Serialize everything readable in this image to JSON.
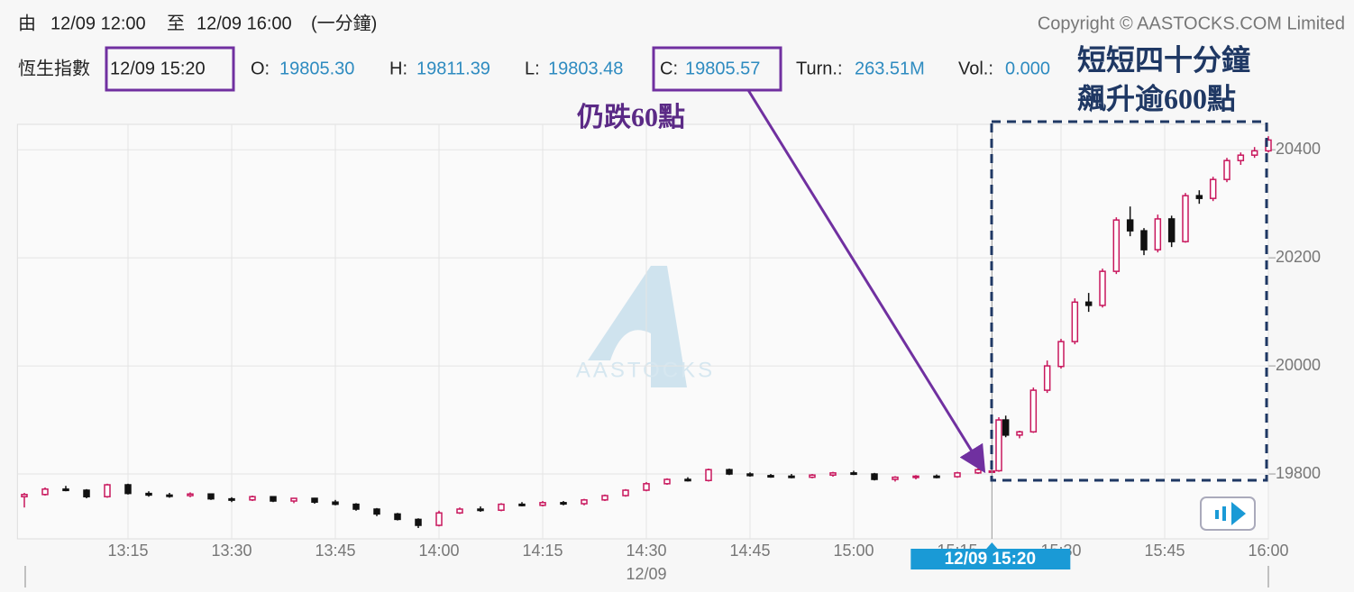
{
  "header": {
    "from_label": "由",
    "from": "12/09 12:00",
    "to_label": "至",
    "to": "12/09 16:00",
    "interval": "(一分鐘)",
    "copyright": "Copyright © AASTOCKS.COM Limited",
    "index_name": "恆生指數",
    "time": "12/09 15:20",
    "open_label": "O:",
    "open": "19805.30",
    "high_label": "H:",
    "high": "19811.39",
    "low_label": "L:",
    "low": "19803.48",
    "close_label": "C:",
    "close": "19805.57",
    "turnover_label": "Turn.:",
    "turnover": "263.51M",
    "volume_label": "Vol.:",
    "volume": "0.000"
  },
  "chart_data": {
    "type": "candlestick",
    "x": [
      "13:00",
      "13:03",
      "13:06",
      "13:09",
      "13:12",
      "13:15",
      "13:18",
      "13:21",
      "13:24",
      "13:27",
      "13:30",
      "13:33",
      "13:36",
      "13:39",
      "13:42",
      "13:45",
      "13:48",
      "13:51",
      "13:54",
      "13:57",
      "14:00",
      "14:03",
      "14:06",
      "14:09",
      "14:12",
      "14:15",
      "14:18",
      "14:21",
      "14:24",
      "14:27",
      "14:30",
      "14:33",
      "14:36",
      "14:39",
      "14:42",
      "14:45",
      "14:48",
      "14:51",
      "14:54",
      "14:57",
      "15:00",
      "15:03",
      "15:06",
      "15:09",
      "15:12",
      "15:15",
      "15:18",
      "15:20",
      "15:21",
      "15:22",
      "15:24",
      "15:26",
      "15:28",
      "15:30",
      "15:32",
      "15:34",
      "15:36",
      "15:38",
      "15:40",
      "15:42",
      "15:44",
      "15:46",
      "15:48",
      "15:50",
      "15:52",
      "15:54",
      "15:56",
      "15:58",
      "16:00"
    ],
    "open": [
      19758,
      19762,
      19772,
      19770,
      19758,
      19780,
      19764,
      19761,
      19760,
      19763,
      19754,
      19752,
      19758,
      19750,
      19755,
      19748,
      19744,
      19735,
      19726,
      19716,
      19705,
      19728,
      19735,
      19733,
      19744,
      19742,
      19747,
      19745,
      19752,
      19760,
      19770,
      19782,
      19790,
      19788,
      19808,
      19800,
      19797,
      19796,
      19794,
      19798,
      19802,
      19800,
      19790,
      19794,
      19796,
      19795,
      19802,
      19805.3,
      19806,
      19900,
      19872,
      19878,
      19955,
      19999,
      20045,
      20118,
      20112,
      20175,
      20270,
      20250,
      20215,
      20272,
      20230,
      20315,
      20310,
      20345,
      20380,
      20390,
      20398
    ],
    "high": [
      19765,
      19775,
      19778,
      19772,
      19782,
      19782,
      19768,
      19765,
      19766,
      19764,
      19757,
      19760,
      19759,
      19756,
      19756,
      19752,
      19746,
      19737,
      19728,
      19718,
      19732,
      19738,
      19740,
      19746,
      19748,
      19750,
      19750,
      19754,
      19762,
      19772,
      19785,
      19792,
      19794,
      19810,
      19810,
      19803,
      19800,
      19800,
      19800,
      19804,
      19806,
      19802,
      19796,
      19798,
      19799,
      19804,
      19812,
      19811.39,
      19905,
      19908,
      19880,
      19960,
      20010,
      20050,
      20125,
      20135,
      20180,
      20275,
      20295,
      20255,
      20280,
      20278,
      20320,
      20325,
      20350,
      20385,
      20395,
      20405,
      20425
    ],
    "low": [
      19738,
      19760,
      19768,
      19755,
      19756,
      19762,
      19758,
      19756,
      19757,
      19752,
      19748,
      19750,
      19748,
      19746,
      19745,
      19742,
      19732,
      19722,
      19714,
      19700,
      19703,
      19726,
      19730,
      19731,
      19740,
      19740,
      19742,
      19742,
      19750,
      19758,
      19768,
      19780,
      19786,
      19786,
      19798,
      19795,
      19793,
      19792,
      19792,
      19795,
      19798,
      19788,
      19786,
      19790,
      19792,
      19793,
      19800,
      19803.48,
      19804,
      19868,
      19866,
      19876,
      19950,
      19995,
      20040,
      20100,
      20108,
      20170,
      20240,
      20205,
      20210,
      20220,
      20228,
      20300,
      20305,
      20340,
      20372,
      20385,
      20395
    ],
    "close": [
      19762,
      19772,
      19770,
      19758,
      19780,
      19764,
      19761,
      19760,
      19763,
      19754,
      19752,
      19758,
      19750,
      19755,
      19748,
      19744,
      19735,
      19726,
      19716,
      19705,
      19728,
      19735,
      19733,
      19744,
      19742,
      19747,
      19745,
      19752,
      19760,
      19770,
      19782,
      19790,
      19788,
      19808,
      19800,
      19797,
      19796,
      19794,
      19798,
      19802,
      19800,
      19790,
      19794,
      19796,
      19795,
      19802,
      19808,
      19805.57,
      19900,
      19872,
      19878,
      19955,
      20000,
      20045,
      20118,
      20112,
      20175,
      20270,
      20250,
      20215,
      20272,
      20230,
      20315,
      20310,
      20345,
      20380,
      20390,
      20398,
      20418
    ],
    "up_color": "#c8175d",
    "down_color": "#111111",
    "xlim": [
      "12:59",
      "16:00"
    ],
    "xticks": [
      "13:15",
      "13:30",
      "13:45",
      "14:00",
      "14:15",
      "14:30",
      "14:45",
      "15:00",
      "15:15",
      "15:30",
      "15:45",
      "16:00"
    ],
    "x_date": "12/09",
    "ylim": [
      19680,
      20447
    ],
    "yticks": [
      19800,
      20000,
      20200,
      20400
    ],
    "grid": true,
    "crosshair": {
      "x": "15:20",
      "label": "12/09 15:20"
    },
    "watermark": "AASTOCKS",
    "annotations": [
      "仍跌60點",
      "短短四十分鐘",
      "飆升逾600點"
    ]
  }
}
